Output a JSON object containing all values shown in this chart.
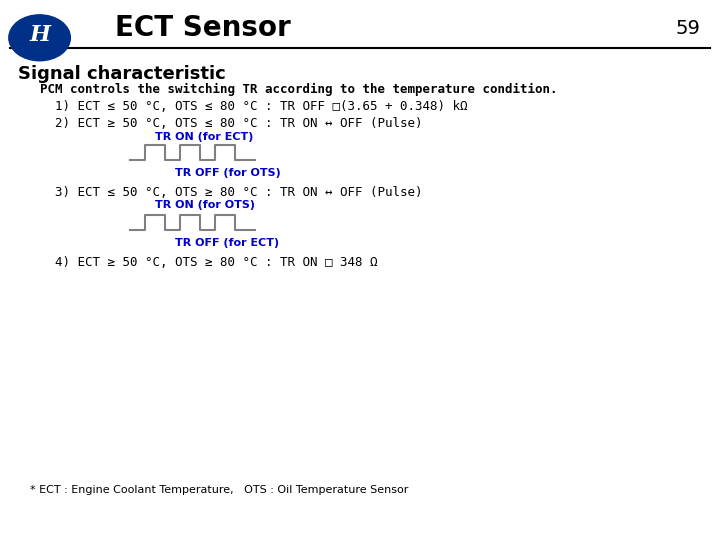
{
  "title": "ECT Sensor",
  "page_number": "59",
  "section_title": "Signal characteristic",
  "main_text": "PCM controls the switching TR according to the temperature condition.",
  "line1": "1) ECT ≤ 50 °C, OTS ≤ 80 °C : TR OFF □(3.65 + 0.348) kΩ",
  "line2": "2) ECT ≥ 50 °C, OTS ≤ 80 °C : TR ON ↔ OFF (Pulse)",
  "label_on_ect": "TR ON (for ECT)",
  "label_off_ots": "TR OFF (for OTS)",
  "line3": "3) ECT ≤ 50 °C, OTS ≥ 80 °C : TR ON ↔ OFF (Pulse)",
  "label_on_ots": "TR ON (for OTS)",
  "label_off_ect": "TR OFF (for ECT)",
  "line4": "4) ECT ≥ 50 °C, OTS ≥ 80 °C : TR ON □ 348 Ω",
  "footnote": "* ECT : Engine Coolant Temperature,   OTS : Oil Temperature Sensor",
  "bg_color": "#ffffff",
  "header_line_color": "#000000",
  "text_color": "#000000",
  "blue_color": "#0000cc",
  "wave_color": "#808080",
  "hyundai_blue": "#003087"
}
